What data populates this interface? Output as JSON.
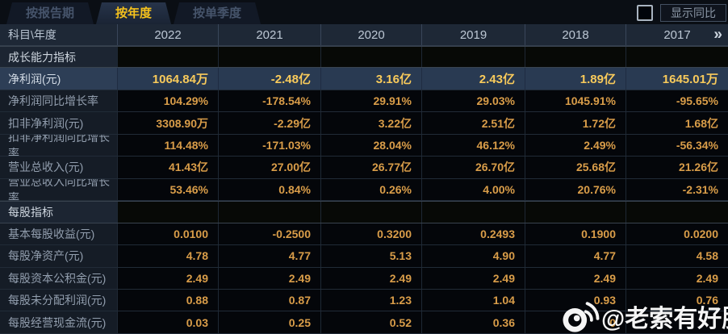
{
  "tabs": [
    {
      "label": "按报告期",
      "active": false
    },
    {
      "label": "按年度",
      "active": true
    },
    {
      "label": "按单季度",
      "active": false
    }
  ],
  "controls": {
    "show_yoy_label": "显示同比",
    "show_yoy_checked": false
  },
  "table": {
    "corner_header": "科目\\年度",
    "years": [
      "2022",
      "2021",
      "2020",
      "2019",
      "2018",
      "2017"
    ],
    "more_icon": "»",
    "rows": [
      {
        "type": "section",
        "label": "成长能力指标"
      },
      {
        "type": "data",
        "label": "净利润(元)",
        "highlight": true,
        "values": [
          "1064.84万",
          "-2.48亿",
          "3.16亿",
          "2.43亿",
          "1.89亿",
          "1645.01万"
        ]
      },
      {
        "type": "data",
        "label": "净利润同比增长率",
        "values": [
          "104.29%",
          "-178.54%",
          "29.91%",
          "29.03%",
          "1045.91%",
          "-95.65%"
        ]
      },
      {
        "type": "data",
        "label": "扣非净利润(元)",
        "values": [
          "3308.90万",
          "-2.29亿",
          "3.22亿",
          "2.51亿",
          "1.72亿",
          "1.68亿"
        ]
      },
      {
        "type": "data",
        "label": "扣非净利润同比增长率",
        "values": [
          "114.48%",
          "-171.03%",
          "28.04%",
          "46.12%",
          "2.49%",
          "-56.34%"
        ]
      },
      {
        "type": "data",
        "label": "营业总收入(元)",
        "values": [
          "41.43亿",
          "27.00亿",
          "26.77亿",
          "26.70亿",
          "25.68亿",
          "21.26亿"
        ]
      },
      {
        "type": "data",
        "label": "营业总收入同比增长率",
        "values": [
          "53.46%",
          "0.84%",
          "0.26%",
          "4.00%",
          "20.76%",
          "-2.31%"
        ]
      },
      {
        "type": "section",
        "label": "每股指标"
      },
      {
        "type": "data",
        "label": "基本每股收益(元)",
        "values": [
          "0.0100",
          "-0.2500",
          "0.3200",
          "0.2493",
          "0.1900",
          "0.0200"
        ]
      },
      {
        "type": "data",
        "label": "每股净资产(元)",
        "values": [
          "4.78",
          "4.77",
          "5.13",
          "4.90",
          "4.77",
          "4.58"
        ]
      },
      {
        "type": "data",
        "label": "每股资本公积金(元)",
        "values": [
          "2.49",
          "2.49",
          "2.49",
          "2.49",
          "2.49",
          "2.49"
        ]
      },
      {
        "type": "data",
        "label": "每股未分配利润(元)",
        "values": [
          "0.88",
          "0.87",
          "1.23",
          "1.04",
          "0.93",
          "0.76"
        ]
      },
      {
        "type": "data",
        "label": "每股经营现金流(元)",
        "values": [
          "0.03",
          "0.25",
          "0.52",
          "0.36",
          "0",
          ""
        ]
      }
    ]
  },
  "watermark": {
    "icon": "weibo-logo",
    "text": "@老索有好股"
  },
  "colors": {
    "accent_gold": "#f4c11d",
    "value_orange": "#d99d49",
    "highlight_value": "#f8ca5b",
    "highlight_row_bg": "#293a52",
    "header_bg": "#1e2836",
    "label_cell_bg": "#151c26",
    "watermark": "#ffffff"
  }
}
